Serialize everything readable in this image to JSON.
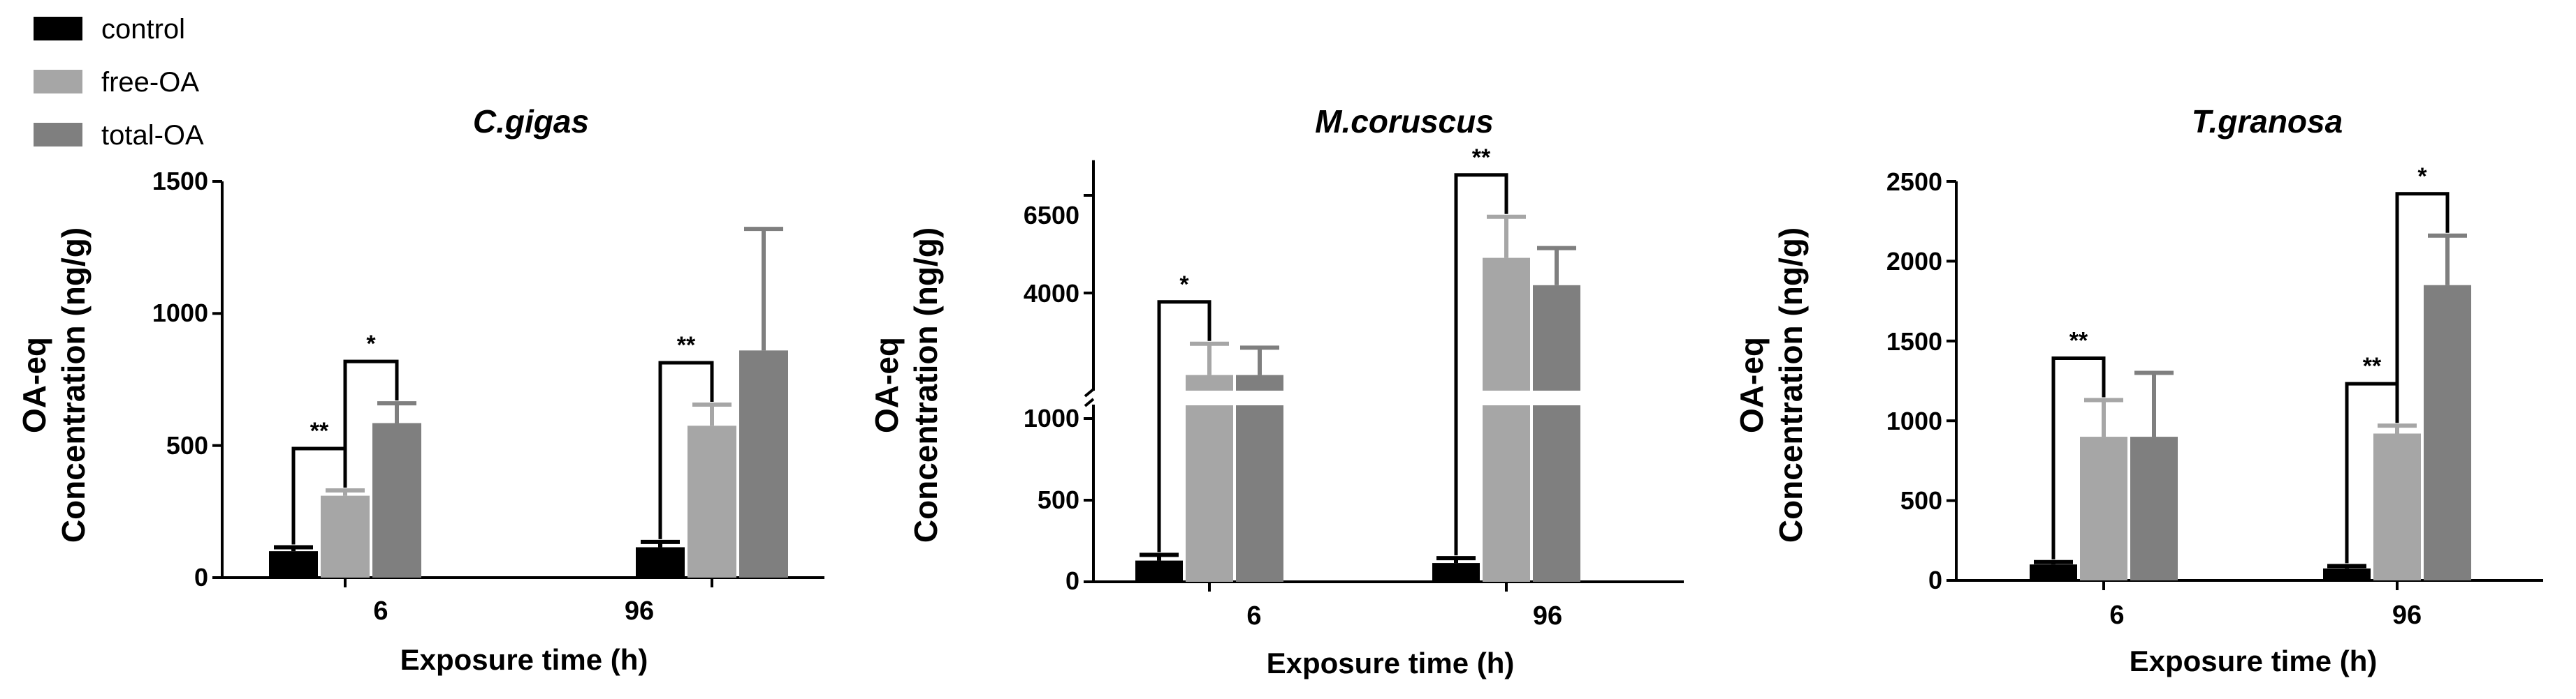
{
  "legend": [
    {
      "name": "control",
      "color": "#000000"
    },
    {
      "name": "free-OA",
      "color": "#a6a6a6"
    },
    {
      "name": "total-OA",
      "color": "#7f7f7f"
    }
  ],
  "chart_data": [
    {
      "type": "bar",
      "title": "C.gigas",
      "xlabel": "Exposure time (h)",
      "ylabel": [
        "OA-eq",
        "Concentration (ng/g)"
      ],
      "categories": [
        "6",
        "96"
      ],
      "ylim": [
        0,
        1500
      ],
      "yticks": [
        "0",
        "500",
        "1000",
        "1500"
      ],
      "series": [
        {
          "name": "control",
          "values": [
            100,
            115
          ],
          "errors": [
            15,
            20
          ]
        },
        {
          "name": "free-OA",
          "values": [
            310,
            575
          ],
          "errors": [
            20,
            80
          ]
        },
        {
          "name": "total-OA",
          "values": [
            585,
            860
          ],
          "errors": [
            75,
            460
          ]
        }
      ],
      "significance": [
        {
          "label": "**",
          "category": 0,
          "from": "control",
          "to": "free-OA"
        },
        {
          "label": "*",
          "category": 0,
          "from": "free-OA",
          "to": "total-OA"
        },
        {
          "label": "**",
          "category": 1,
          "from": "control",
          "to": "free-OA"
        }
      ]
    },
    {
      "type": "bar",
      "title": "M.coruscus",
      "xlabel": "Exposure time (h)",
      "ylabel": [
        "OA-eq",
        "Concentration (ng/g)"
      ],
      "categories": [
        "6",
        "96"
      ],
      "ylim": [
        0,
        7400
      ],
      "axis_break": [
        1100,
        1500
      ],
      "yticks": [
        "0",
        "500",
        "1000",
        "4000",
        "6500"
      ],
      "series": [
        {
          "name": "control",
          "values": [
            130,
            115
          ],
          "errors": [
            35,
            30
          ]
        },
        {
          "name": "free-OA",
          "values": [
            1900,
            4900
          ],
          "errors": [
            800,
            1050
          ]
        },
        {
          "name": "total-OA",
          "values": [
            1900,
            4200
          ],
          "errors": [
            700,
            950
          ]
        }
      ],
      "significance": [
        {
          "label": "*",
          "category": 0,
          "from": "control",
          "to": "free-OA"
        },
        {
          "label": "**",
          "category": 1,
          "from": "control",
          "to": "free-OA"
        }
      ]
    },
    {
      "type": "bar",
      "title": "T.granosa",
      "xlabel": "Exposure time (h)",
      "ylabel": [
        "OA-eq",
        "Concentration (ng/g)"
      ],
      "categories": [
        "6",
        "96"
      ],
      "ylim": [
        0,
        2500
      ],
      "yticks": [
        "0",
        "500",
        "1000",
        "1500",
        "2000",
        "2500"
      ],
      "series": [
        {
          "name": "control",
          "values": [
            100,
            75
          ],
          "errors": [
            15,
            15
          ]
        },
        {
          "name": "free-OA",
          "values": [
            900,
            920
          ],
          "errors": [
            230,
            50
          ]
        },
        {
          "name": "total-OA",
          "values": [
            900,
            1850
          ],
          "errors": [
            400,
            310
          ]
        }
      ],
      "significance": [
        {
          "label": "**",
          "category": 0,
          "from": "control",
          "to": "free-OA"
        },
        {
          "label": "**",
          "category": 1,
          "from": "control",
          "to": "free-OA"
        },
        {
          "label": "*",
          "category": 1,
          "from": "free-OA",
          "to": "total-OA"
        }
      ]
    }
  ]
}
